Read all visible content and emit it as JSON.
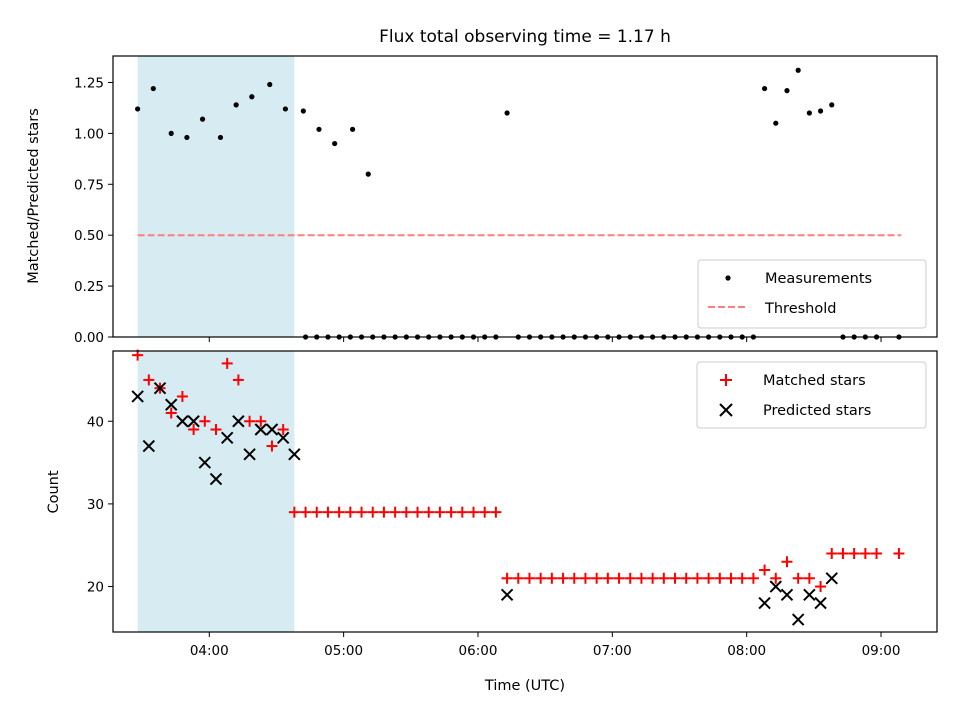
{
  "chart_data": [
    {
      "type": "scatter",
      "title": "Flux total observing time = 1.17 h",
      "xlabel": "",
      "ylabel": "Matched/Predicted stars",
      "xlim": [
        "03:17",
        "09:25"
      ],
      "ylim": [
        0,
        1.38
      ],
      "yticks": [
        "0.00",
        "0.25",
        "0.50",
        "0.75",
        "1.00",
        "1.25"
      ],
      "shaded_span": [
        "03:28",
        "04:38"
      ],
      "legend": "lower right",
      "colors": {
        "measurements": "#000000",
        "threshold": "#ff7f7f",
        "span": "#add8e6"
      },
      "series": [
        {
          "name": "Measurements",
          "marker": "dot",
          "points": [
            [
              "03:28",
              1.12
            ],
            [
              "03:35",
              1.22
            ],
            [
              "03:43",
              1.0
            ],
            [
              "03:50",
              0.98
            ],
            [
              "03:57",
              1.07
            ],
            [
              "04:05",
              0.98
            ],
            [
              "04:12",
              1.14
            ],
            [
              "04:19",
              1.18
            ],
            [
              "04:27",
              1.24
            ],
            [
              "04:34",
              1.12
            ],
            [
              "04:42",
              1.11
            ],
            [
              "04:49",
              1.02
            ],
            [
              "04:56",
              0.95
            ],
            [
              "05:04",
              1.02
            ],
            [
              "05:11",
              0.8
            ],
            [
              "04:43",
              0.0
            ],
            [
              "04:48",
              0.0
            ],
            [
              "04:53",
              0.0
            ],
            [
              "04:58",
              0.0
            ],
            [
              "05:03",
              0.0
            ],
            [
              "05:08",
              0.0
            ],
            [
              "05:13",
              0.0
            ],
            [
              "05:18",
              0.0
            ],
            [
              "05:23",
              0.0
            ],
            [
              "05:28",
              0.0
            ],
            [
              "05:33",
              0.0
            ],
            [
              "05:38",
              0.0
            ],
            [
              "05:43",
              0.0
            ],
            [
              "05:48",
              0.0
            ],
            [
              "05:53",
              0.0
            ],
            [
              "05:58",
              0.0
            ],
            [
              "06:03",
              0.0
            ],
            [
              "06:08",
              0.0
            ],
            [
              "06:13",
              1.1
            ],
            [
              "06:18",
              0.0
            ],
            [
              "06:23",
              0.0
            ],
            [
              "06:28",
              0.0
            ],
            [
              "06:33",
              0.0
            ],
            [
              "06:38",
              0.0
            ],
            [
              "06:43",
              0.0
            ],
            [
              "06:48",
              0.0
            ],
            [
              "06:53",
              0.0
            ],
            [
              "06:58",
              0.0
            ],
            [
              "07:03",
              0.0
            ],
            [
              "07:08",
              0.0
            ],
            [
              "07:13",
              0.0
            ],
            [
              "07:18",
              0.0
            ],
            [
              "07:23",
              0.0
            ],
            [
              "07:28",
              0.0
            ],
            [
              "07:33",
              0.0
            ],
            [
              "07:38",
              0.0
            ],
            [
              "07:43",
              0.0
            ],
            [
              "07:48",
              0.0
            ],
            [
              "07:53",
              0.0
            ],
            [
              "07:58",
              0.0
            ],
            [
              "08:03",
              0.0
            ],
            [
              "08:08",
              1.22
            ],
            [
              "08:13",
              1.05
            ],
            [
              "08:18",
              1.21
            ],
            [
              "08:23",
              1.31
            ],
            [
              "08:28",
              1.1
            ],
            [
              "08:33",
              1.11
            ],
            [
              "08:38",
              1.14
            ],
            [
              "08:43",
              0.0
            ],
            [
              "08:48",
              0.0
            ],
            [
              "08:53",
              0.0
            ],
            [
              "08:58",
              0.0
            ],
            [
              "09:08",
              0.0
            ]
          ]
        },
        {
          "name": "Threshold",
          "style": "dashed",
          "points": [
            [
              "03:28",
              0.5
            ],
            [
              "09:09",
              0.5
            ]
          ]
        }
      ]
    },
    {
      "type": "scatter",
      "title": "",
      "xlabel": "Time (UTC)",
      "ylabel": "Count",
      "xlim": [
        "03:17",
        "09:25"
      ],
      "ylim": [
        14.5,
        48.5
      ],
      "xticks": [
        "04:00",
        "05:00",
        "06:00",
        "07:00",
        "08:00",
        "09:00"
      ],
      "yticks": [
        "20",
        "30",
        "40"
      ],
      "shaded_span": [
        "03:28",
        "04:38"
      ],
      "legend": "upper right",
      "colors": {
        "matched": "#ff0000",
        "predicted": "#000000",
        "span": "#add8e6"
      },
      "series": [
        {
          "name": "Matched stars",
          "marker": "plus",
          "points": [
            [
              "03:28",
              48
            ],
            [
              "03:33",
              45
            ],
            [
              "03:38",
              44
            ],
            [
              "03:43",
              41
            ],
            [
              "03:48",
              43
            ],
            [
              "03:53",
              39
            ],
            [
              "03:58",
              40
            ],
            [
              "04:03",
              39
            ],
            [
              "04:08",
              47
            ],
            [
              "04:13",
              45
            ],
            [
              "04:18",
              40
            ],
            [
              "04:23",
              40
            ],
            [
              "04:28",
              37
            ],
            [
              "04:33",
              39
            ],
            [
              "04:38",
              29
            ],
            [
              "04:43",
              29
            ],
            [
              "04:48",
              29
            ],
            [
              "04:53",
              29
            ],
            [
              "04:58",
              29
            ],
            [
              "05:03",
              29
            ],
            [
              "05:08",
              29
            ],
            [
              "05:13",
              29
            ],
            [
              "05:18",
              29
            ],
            [
              "05:23",
              29
            ],
            [
              "05:28",
              29
            ],
            [
              "05:33",
              29
            ],
            [
              "05:38",
              29
            ],
            [
              "05:43",
              29
            ],
            [
              "05:48",
              29
            ],
            [
              "05:53",
              29
            ],
            [
              "05:58",
              29
            ],
            [
              "06:03",
              29
            ],
            [
              "06:08",
              29
            ],
            [
              "06:13",
              21
            ],
            [
              "06:18",
              21
            ],
            [
              "06:23",
              21
            ],
            [
              "06:28",
              21
            ],
            [
              "06:33",
              21
            ],
            [
              "06:38",
              21
            ],
            [
              "06:43",
              21
            ],
            [
              "06:48",
              21
            ],
            [
              "06:53",
              21
            ],
            [
              "06:58",
              21
            ],
            [
              "07:03",
              21
            ],
            [
              "07:08",
              21
            ],
            [
              "07:13",
              21
            ],
            [
              "07:18",
              21
            ],
            [
              "07:23",
              21
            ],
            [
              "07:28",
              21
            ],
            [
              "07:33",
              21
            ],
            [
              "07:38",
              21
            ],
            [
              "07:43",
              21
            ],
            [
              "07:48",
              21
            ],
            [
              "07:53",
              21
            ],
            [
              "07:58",
              21
            ],
            [
              "08:03",
              21
            ],
            [
              "08:08",
              22
            ],
            [
              "08:13",
              21
            ],
            [
              "08:18",
              23
            ],
            [
              "08:23",
              21
            ],
            [
              "08:28",
              21
            ],
            [
              "08:33",
              20
            ],
            [
              "08:38",
              24
            ],
            [
              "08:43",
              24
            ],
            [
              "08:48",
              24
            ],
            [
              "08:53",
              24
            ],
            [
              "08:58",
              24
            ],
            [
              "09:08",
              24
            ]
          ]
        },
        {
          "name": "Predicted stars",
          "marker": "x",
          "points": [
            [
              "03:28",
              43
            ],
            [
              "03:33",
              37
            ],
            [
              "03:38",
              44
            ],
            [
              "03:43",
              42
            ],
            [
              "03:48",
              40
            ],
            [
              "03:53",
              40
            ],
            [
              "03:58",
              35
            ],
            [
              "04:03",
              33
            ],
            [
              "04:08",
              38
            ],
            [
              "04:13",
              40
            ],
            [
              "04:18",
              36
            ],
            [
              "04:23",
              39
            ],
            [
              "04:28",
              39
            ],
            [
              "04:33",
              38
            ],
            [
              "04:38",
              36
            ],
            [
              "06:13",
              19
            ],
            [
              "08:08",
              18
            ],
            [
              "08:13",
              20
            ],
            [
              "08:18",
              19
            ],
            [
              "08:23",
              16
            ],
            [
              "08:28",
              19
            ],
            [
              "08:33",
              18
            ],
            [
              "08:38",
              21
            ]
          ]
        }
      ]
    }
  ]
}
